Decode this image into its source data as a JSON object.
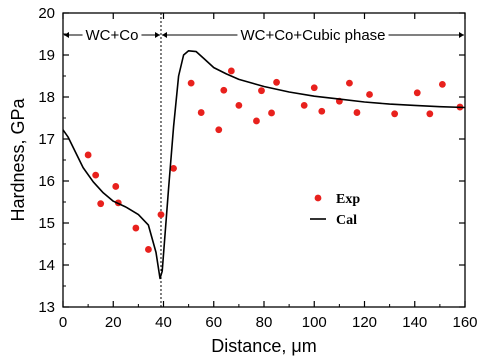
{
  "chart_data": {
    "type": "scatter",
    "xlabel": "Distance, μm",
    "ylabel": "Hardness, GPa",
    "xlim": [
      0,
      160
    ],
    "ylim": [
      13,
      20
    ],
    "x_ticks": [
      "0",
      "20",
      "40",
      "60",
      "80",
      "100",
      "120",
      "140",
      "160"
    ],
    "y_ticks": [
      "13",
      "14",
      "15",
      "16",
      "17",
      "18",
      "19",
      "20"
    ],
    "grid": false,
    "legend_position": "center-right",
    "boundary_x": 39,
    "regions": [
      {
        "label": "WC+Co",
        "x_range": [
          0,
          39
        ]
      },
      {
        "label": "WC+Co+Cubic phase",
        "x_range": [
          39,
          160
        ]
      }
    ],
    "series": [
      {
        "name": "Exp",
        "kind": "scatter",
        "color": "#e8211d",
        "points": [
          [
            10,
            16.62
          ],
          [
            13,
            16.14
          ],
          [
            15,
            15.46
          ],
          [
            21,
            15.87
          ],
          [
            22,
            15.48
          ],
          [
            29,
            14.88
          ],
          [
            34,
            14.37
          ],
          [
            39,
            15.2
          ],
          [
            44,
            16.3
          ],
          [
            51,
            18.33
          ],
          [
            55,
            17.63
          ],
          [
            62,
            17.22
          ],
          [
            64,
            18.16
          ],
          [
            67,
            18.62
          ],
          [
            70,
            17.8
          ],
          [
            77,
            17.43
          ],
          [
            79,
            18.15
          ],
          [
            83,
            17.62
          ],
          [
            85,
            18.35
          ],
          [
            96,
            17.8
          ],
          [
            100,
            18.22
          ],
          [
            103,
            17.66
          ],
          [
            110,
            17.9
          ],
          [
            114,
            18.33
          ],
          [
            117,
            17.63
          ],
          [
            122,
            18.06
          ],
          [
            132,
            17.6
          ],
          [
            141,
            18.1
          ],
          [
            146,
            17.6
          ],
          [
            151,
            18.3
          ],
          [
            158,
            17.76
          ]
        ]
      },
      {
        "name": "Cal",
        "kind": "line",
        "color": "#000000",
        "points": [
          [
            0,
            17.22
          ],
          [
            2,
            17.05
          ],
          [
            5,
            16.68
          ],
          [
            8,
            16.32
          ],
          [
            12,
            15.98
          ],
          [
            16,
            15.72
          ],
          [
            20,
            15.52
          ],
          [
            25,
            15.38
          ],
          [
            30,
            15.2
          ],
          [
            34,
            14.95
          ],
          [
            37,
            14.3
          ],
          [
            38.6,
            13.68
          ],
          [
            39.5,
            13.85
          ],
          [
            42,
            15.8
          ],
          [
            44,
            17.3
          ],
          [
            46,
            18.5
          ],
          [
            48,
            19.0
          ],
          [
            50,
            19.1
          ],
          [
            53,
            19.08
          ],
          [
            56,
            18.92
          ],
          [
            60,
            18.7
          ],
          [
            65,
            18.55
          ],
          [
            70,
            18.42
          ],
          [
            80,
            18.25
          ],
          [
            90,
            18.12
          ],
          [
            100,
            18.02
          ],
          [
            110,
            17.95
          ],
          [
            120,
            17.88
          ],
          [
            130,
            17.83
          ],
          [
            140,
            17.8
          ],
          [
            150,
            17.77
          ],
          [
            160,
            17.75
          ]
        ]
      }
    ]
  }
}
